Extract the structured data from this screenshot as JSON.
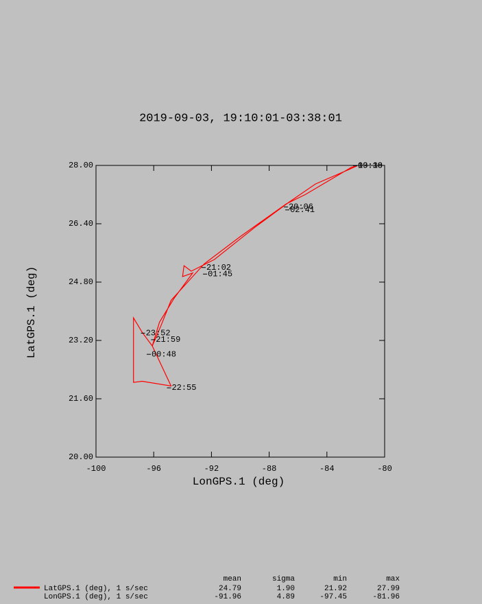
{
  "chart_data": {
    "type": "line",
    "title": "2019-09-03, 19:10:01-03:38:01",
    "xlabel": "LonGPS.1 (deg)",
    "ylabel": "LatGPS.1 (deg)",
    "x": [
      -81.9,
      -82.4,
      -84.8,
      -86.6,
      -89.0,
      -91.8,
      -93.4,
      -93.9,
      -94.0,
      -93.3,
      -94.6,
      -95.6,
      -96.1,
      -94.8,
      -96.8,
      -97.4,
      -97.4,
      -96.8,
      -96.1,
      -95.5,
      -94.8,
      -92.5,
      -90.0,
      -86.8,
      -85.5,
      -82.3,
      -81.9
    ],
    "series": [
      {
        "name": "LatGPS.1 (deg), 1 s/sec",
        "color": "#ff0000",
        "values": [
          27.99,
          27.9,
          27.49,
          27.0,
          26.3,
          25.42,
          25.1,
          25.25,
          24.95,
          25.05,
          24.35,
          23.7,
          23.05,
          21.95,
          22.08,
          22.05,
          23.82,
          23.42,
          23.05,
          23.6,
          24.3,
          25.3,
          26.05,
          26.95,
          27.2,
          27.95,
          27.99
        ]
      }
    ],
    "x_name": "LonGPS.1 (deg), 1 s/sec",
    "xlim": [
      -100,
      -80
    ],
    "xticks": [
      -100,
      -96,
      -92,
      -88,
      -84,
      -80
    ],
    "ylim": [
      20,
      28
    ],
    "yticks": [
      {
        "value": 20,
        "label": "20.00"
      },
      {
        "value": 21.6,
        "label": "21.60"
      },
      {
        "value": 23.2,
        "label": "23.20"
      },
      {
        "value": 24.8,
        "label": "24.80"
      },
      {
        "value": 26.4,
        "label": "26.40"
      },
      {
        "value": 28,
        "label": "28.00"
      }
    ],
    "annotations": [
      {
        "text": "19:10",
        "x": -81.9,
        "y": 27.99
      },
      {
        "text": "03:38",
        "x": -81.9,
        "y": 27.99
      },
      {
        "text": "20:06",
        "x": -86.7,
        "y": 26.86
      },
      {
        "text": "02:41",
        "x": -86.6,
        "y": 26.78
      },
      {
        "text": "21:02",
        "x": -92.4,
        "y": 25.2
      },
      {
        "text": "01:45",
        "x": -92.3,
        "y": 25.02
      },
      {
        "text": "23:52",
        "x": -96.6,
        "y": 23.4
      },
      {
        "text": "21:59",
        "x": -95.9,
        "y": 23.22
      },
      {
        "text": "00:48",
        "x": -96.2,
        "y": 22.82
      },
      {
        "text": "22:55",
        "x": -94.8,
        "y": 21.9
      }
    ],
    "stats": {
      "columns": [
        "mean",
        "sigma",
        "min",
        "max"
      ],
      "rows": [
        [
          "24.79",
          "1.90",
          "21.92",
          "27.99"
        ],
        [
          "-91.96",
          "4.89",
          "-97.45",
          "-81.96"
        ]
      ]
    }
  }
}
